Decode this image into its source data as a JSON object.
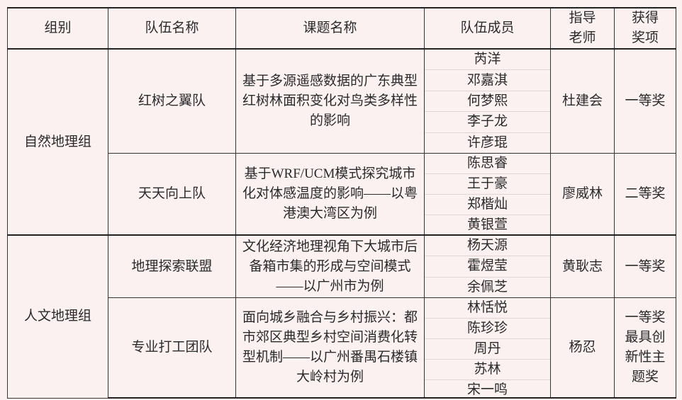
{
  "headers": [
    "组别",
    "队伍名称",
    "课题名称",
    "队伍成员",
    "指导老师",
    "获得奖项"
  ],
  "groups": [
    {
      "name": "自然地理组",
      "teams": [
        {
          "team": "红树之翼队",
          "topic": "基于多源遥感数据的广东典型红树林面积变化对鸟类多样性的影响",
          "members": [
            "芮洋",
            "邓嘉淇",
            "何梦熙",
            "李子龙",
            "许彦琨"
          ],
          "advisor": "杜建会",
          "award": "一等奖"
        },
        {
          "team": "天天向上队",
          "topic": "基于WRF/UCM模式探究城市化对体感温度的影响——以粤港澳大湾区为例",
          "members": [
            "陈思睿",
            "王于豪",
            "郑楷灿",
            "黄银萱"
          ],
          "advisor": "廖威林",
          "award": "二等奖"
        }
      ]
    },
    {
      "name": "人文地理组",
      "teams": [
        {
          "team": "地理探索联盟",
          "topic": "文化经济地理视角下大城市后备箱市集的形成与空间模式——以广州市为例",
          "members": [
            "杨天源",
            "霍煜莹",
            "余佩芝"
          ],
          "advisor": "黄耿志",
          "award": "一等奖"
        },
        {
          "team": "专业打工团队",
          "topic": "面向城乡融合与乡村振兴：都市郊区典型乡村空间消费化转型机制——以广州番禺石楼镇大岭村为例",
          "members": [
            "林恬悦",
            "陈珍珍",
            "周丹",
            "苏林",
            "宋一鸣"
          ],
          "advisor": "杨忍",
          "award": "一等奖最具创新性主题奖"
        }
      ]
    }
  ]
}
